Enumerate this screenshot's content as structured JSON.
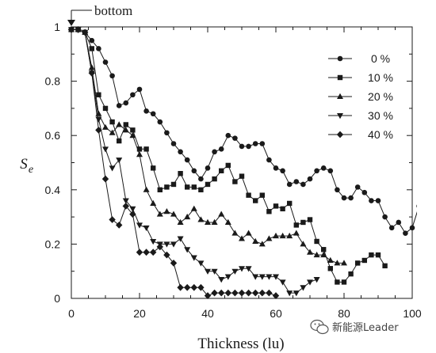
{
  "chart_data": {
    "type": "line",
    "title": "",
    "xlabel": "Thickness (lu)",
    "ylabel": "S",
    "ylabel_subscript": "e",
    "xlim": [
      0,
      100
    ],
    "ylim": [
      0,
      1
    ],
    "xticks": [
      0,
      20,
      40,
      60,
      80,
      100
    ],
    "yticks": [
      0,
      0.2,
      0.4,
      0.6,
      0.8,
      1
    ],
    "ytick_labels": [
      "0",
      "0.2",
      "0.4",
      "0.6",
      "0.8",
      "1"
    ],
    "legend_position": "top-right",
    "annotation": {
      "text": "bottom",
      "x": 0,
      "y": 1
    },
    "series": [
      {
        "name": "0 %",
        "marker": "circle",
        "points": [
          [
            0,
            0.99
          ],
          [
            2,
            0.99
          ],
          [
            4,
            0.98
          ],
          [
            6,
            0.95
          ],
          [
            8,
            0.92
          ],
          [
            10,
            0.87
          ],
          [
            12,
            0.82
          ],
          [
            14,
            0.71
          ],
          [
            16,
            0.72
          ],
          [
            18,
            0.75
          ],
          [
            20,
            0.77
          ],
          [
            22,
            0.69
          ],
          [
            24,
            0.68
          ],
          [
            26,
            0.65
          ],
          [
            28,
            0.61
          ],
          [
            30,
            0.57
          ],
          [
            32,
            0.54
          ],
          [
            34,
            0.51
          ],
          [
            36,
            0.47
          ],
          [
            38,
            0.44
          ],
          [
            40,
            0.48
          ],
          [
            42,
            0.54
          ],
          [
            44,
            0.55
          ],
          [
            46,
            0.6
          ],
          [
            48,
            0.59
          ],
          [
            50,
            0.56
          ],
          [
            52,
            0.56
          ],
          [
            54,
            0.57
          ],
          [
            56,
            0.57
          ],
          [
            58,
            0.51
          ],
          [
            60,
            0.48
          ],
          [
            62,
            0.47
          ],
          [
            64,
            0.42
          ],
          [
            66,
            0.43
          ],
          [
            68,
            0.42
          ],
          [
            70,
            0.44
          ],
          [
            72,
            0.47
          ],
          [
            74,
            0.48
          ],
          [
            76,
            0.47
          ],
          [
            78,
            0.4
          ],
          [
            80,
            0.37
          ],
          [
            82,
            0.37
          ],
          [
            84,
            0.41
          ],
          [
            86,
            0.39
          ],
          [
            88,
            0.36
          ],
          [
            90,
            0.36
          ],
          [
            92,
            0.3
          ],
          [
            94,
            0.26
          ],
          [
            96,
            0.28
          ],
          [
            98,
            0.24
          ],
          [
            100,
            0.26
          ],
          [
            102,
            0.34
          ]
        ]
      },
      {
        "name": "10 %",
        "marker": "square",
        "points": [
          [
            0,
            0.99
          ],
          [
            2,
            0.99
          ],
          [
            4,
            0.98
          ],
          [
            6,
            0.92
          ],
          [
            8,
            0.75
          ],
          [
            10,
            0.7
          ],
          [
            12,
            0.65
          ],
          [
            14,
            0.58
          ],
          [
            16,
            0.64
          ],
          [
            18,
            0.62
          ],
          [
            20,
            0.55
          ],
          [
            22,
            0.55
          ],
          [
            24,
            0.48
          ],
          [
            26,
            0.4
          ],
          [
            28,
            0.41
          ],
          [
            30,
            0.42
          ],
          [
            32,
            0.46
          ],
          [
            34,
            0.41
          ],
          [
            36,
            0.41
          ],
          [
            38,
            0.4
          ],
          [
            40,
            0.42
          ],
          [
            42,
            0.44
          ],
          [
            44,
            0.47
          ],
          [
            46,
            0.49
          ],
          [
            48,
            0.43
          ],
          [
            50,
            0.45
          ],
          [
            52,
            0.38
          ],
          [
            54,
            0.36
          ],
          [
            56,
            0.38
          ],
          [
            58,
            0.32
          ],
          [
            60,
            0.34
          ],
          [
            62,
            0.33
          ],
          [
            64,
            0.35
          ],
          [
            66,
            0.27
          ],
          [
            68,
            0.28
          ],
          [
            70,
            0.29
          ],
          [
            72,
            0.21
          ],
          [
            74,
            0.18
          ],
          [
            76,
            0.11
          ],
          [
            78,
            0.06
          ],
          [
            80,
            0.06
          ],
          [
            82,
            0.09
          ],
          [
            84,
            0.13
          ],
          [
            86,
            0.14
          ],
          [
            88,
            0.16
          ],
          [
            90,
            0.16
          ],
          [
            92,
            0.12
          ]
        ]
      },
      {
        "name": "20 %",
        "marker": "triangle-up",
        "points": [
          [
            0,
            0.99
          ],
          [
            2,
            0.99
          ],
          [
            4,
            0.98
          ],
          [
            6,
            0.85
          ],
          [
            8,
            0.68
          ],
          [
            10,
            0.63
          ],
          [
            12,
            0.61
          ],
          [
            14,
            0.64
          ],
          [
            16,
            0.62
          ],
          [
            18,
            0.6
          ],
          [
            20,
            0.53
          ],
          [
            22,
            0.4
          ],
          [
            24,
            0.35
          ],
          [
            26,
            0.31
          ],
          [
            28,
            0.32
          ],
          [
            30,
            0.31
          ],
          [
            32,
            0.28
          ],
          [
            34,
            0.3
          ],
          [
            36,
            0.33
          ],
          [
            38,
            0.29
          ],
          [
            40,
            0.28
          ],
          [
            42,
            0.28
          ],
          [
            44,
            0.31
          ],
          [
            46,
            0.28
          ],
          [
            48,
            0.24
          ],
          [
            50,
            0.22
          ],
          [
            52,
            0.24
          ],
          [
            54,
            0.21
          ],
          [
            56,
            0.2
          ],
          [
            58,
            0.22
          ],
          [
            60,
            0.23
          ],
          [
            62,
            0.23
          ],
          [
            64,
            0.23
          ],
          [
            66,
            0.24
          ],
          [
            68,
            0.2
          ],
          [
            70,
            0.17
          ],
          [
            72,
            0.16
          ],
          [
            74,
            0.16
          ],
          [
            76,
            0.14
          ],
          [
            78,
            0.13
          ],
          [
            80,
            0.13
          ]
        ]
      },
      {
        "name": "30 %",
        "marker": "triangle-down",
        "points": [
          [
            0,
            0.99
          ],
          [
            2,
            0.99
          ],
          [
            4,
            0.98
          ],
          [
            6,
            0.83
          ],
          [
            8,
            0.66
          ],
          [
            10,
            0.55
          ],
          [
            12,
            0.48
          ],
          [
            14,
            0.51
          ],
          [
            16,
            0.36
          ],
          [
            18,
            0.33
          ],
          [
            20,
            0.27
          ],
          [
            22,
            0.26
          ],
          [
            24,
            0.21
          ],
          [
            26,
            0.2
          ],
          [
            28,
            0.2
          ],
          [
            30,
            0.2
          ],
          [
            32,
            0.22
          ],
          [
            34,
            0.18
          ],
          [
            36,
            0.15
          ],
          [
            38,
            0.13
          ],
          [
            40,
            0.1
          ],
          [
            42,
            0.1
          ],
          [
            44,
            0.07
          ],
          [
            46,
            0.08
          ],
          [
            48,
            0.1
          ],
          [
            50,
            0.11
          ],
          [
            52,
            0.11
          ],
          [
            54,
            0.08
          ],
          [
            56,
            0.08
          ],
          [
            58,
            0.08
          ],
          [
            60,
            0.08
          ],
          [
            62,
            0.06
          ],
          [
            64,
            0.02
          ],
          [
            66,
            0.02
          ],
          [
            68,
            0.04
          ],
          [
            70,
            0.06
          ],
          [
            72,
            0.07
          ]
        ]
      },
      {
        "name": "40 %",
        "marker": "diamond",
        "points": [
          [
            0,
            0.99
          ],
          [
            2,
            0.99
          ],
          [
            4,
            0.98
          ],
          [
            6,
            0.83
          ],
          [
            8,
            0.62
          ],
          [
            10,
            0.44
          ],
          [
            12,
            0.29
          ],
          [
            14,
            0.27
          ],
          [
            16,
            0.34
          ],
          [
            18,
            0.31
          ],
          [
            20,
            0.17
          ],
          [
            22,
            0.17
          ],
          [
            24,
            0.17
          ],
          [
            26,
            0.19
          ],
          [
            28,
            0.16
          ],
          [
            30,
            0.13
          ],
          [
            32,
            0.04
          ],
          [
            34,
            0.04
          ],
          [
            36,
            0.04
          ],
          [
            38,
            0.04
          ],
          [
            40,
            0.01
          ],
          [
            42,
            0.02
          ],
          [
            44,
            0.02
          ],
          [
            46,
            0.02
          ],
          [
            48,
            0.02
          ],
          [
            50,
            0.02
          ],
          [
            52,
            0.02
          ],
          [
            54,
            0.02
          ],
          [
            56,
            0.02
          ],
          [
            58,
            0.02
          ],
          [
            60,
            0.01
          ]
        ]
      }
    ]
  },
  "watermark": {
    "text": "新能源Leader",
    "icon": "wechat-icon"
  },
  "colors": {
    "ink": "#1a1a1a",
    "background": "#ffffff"
  }
}
